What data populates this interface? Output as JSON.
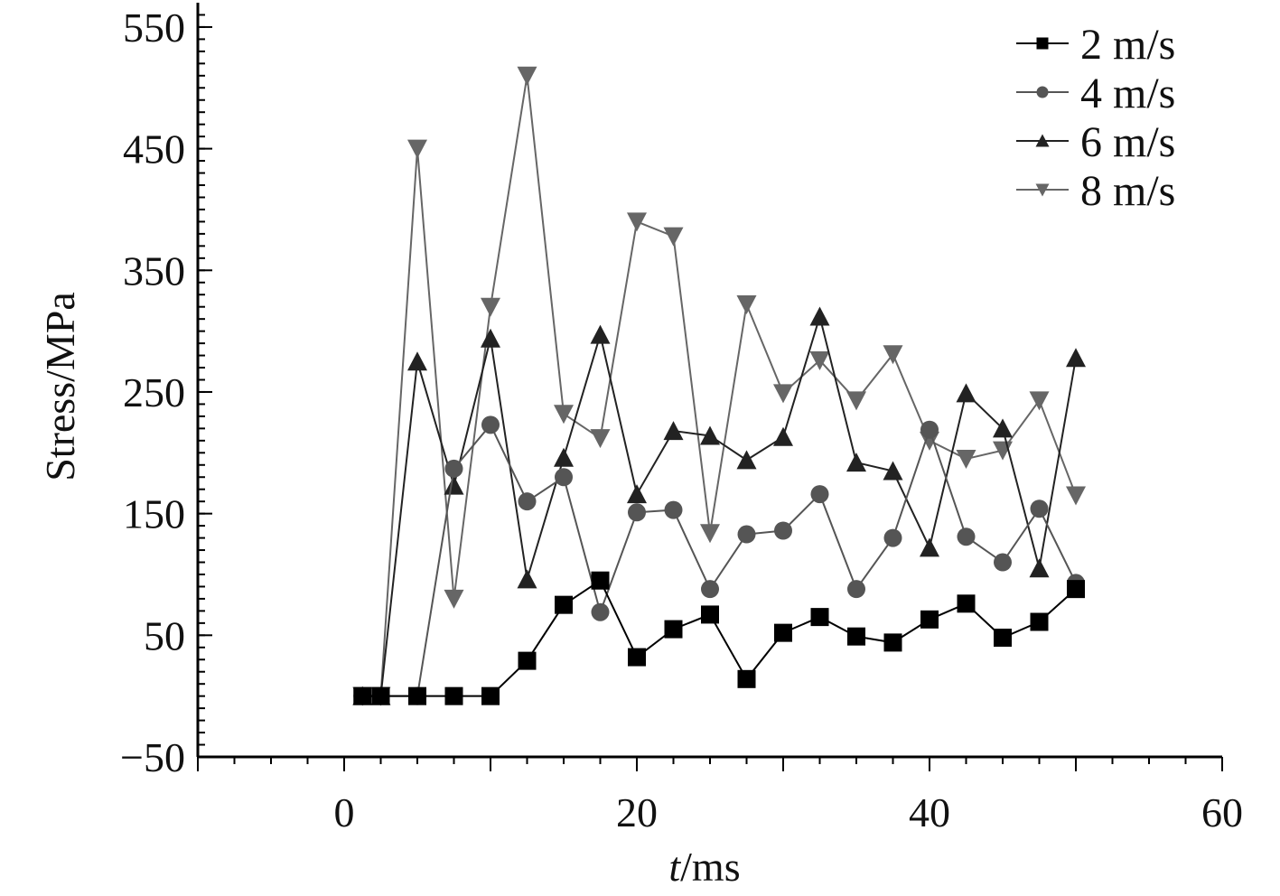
{
  "chart_data": {
    "type": "line",
    "title": "",
    "xlabel_italic": "t",
    "xlabel_rest": "/ms",
    "ylabel": "Stress/MPa",
    "xlim": [
      -10,
      60
    ],
    "ylim": [
      -50,
      570
    ],
    "x_ticks": [
      0,
      20,
      40,
      60
    ],
    "x_ticks_labels": [
      "0",
      "20",
      "40",
      "60"
    ],
    "y_ticks": [
      -50,
      50,
      150,
      250,
      350,
      450,
      550
    ],
    "y_ticks_labels": [
      "−50",
      "50",
      "150",
      "250",
      "350",
      "450",
      "550"
    ],
    "legend_position": "top-right",
    "series": [
      {
        "name": "2 m/s",
        "marker": "square",
        "color": "#000000",
        "x": [
          1.25,
          2.5,
          5,
          7.5,
          10,
          12.5,
          15,
          17.5,
          20,
          22.5,
          25,
          27.5,
          30,
          32.5,
          35,
          37.5,
          40,
          42.5,
          45,
          47.5,
          50
        ],
        "y": [
          0,
          0,
          0,
          0,
          0,
          29,
          75,
          95,
          32,
          55,
          67,
          14,
          52,
          65,
          49,
          44,
          63,
          76,
          48,
          61,
          88
        ]
      },
      {
        "name": "4 m/s",
        "marker": "circle",
        "color": "#555555",
        "x": [
          1.25,
          2.5,
          5,
          7.5,
          10,
          12.5,
          15,
          17.5,
          20,
          22.5,
          25,
          27.5,
          30,
          32.5,
          35,
          37.5,
          40,
          42.5,
          45,
          47.5,
          50
        ],
        "y": [
          0,
          0,
          0,
          187,
          223,
          160,
          180,
          69,
          151,
          153,
          88,
          133,
          136,
          166,
          88,
          130,
          219,
          131,
          110,
          154,
          93
        ]
      },
      {
        "name": "6 m/s",
        "marker": "triangle-up",
        "color": "#222222",
        "x": [
          1.25,
          2.5,
          5,
          7.5,
          10,
          12.5,
          15,
          17.5,
          20,
          22.5,
          25,
          27.5,
          30,
          32.5,
          35,
          37.5,
          40,
          42.5,
          45,
          47.5,
          50
        ],
        "y": [
          0,
          0,
          275,
          173,
          294,
          96,
          196,
          297,
          166,
          218,
          214,
          194,
          213,
          312,
          192,
          185,
          122,
          249,
          220,
          105,
          278
        ]
      },
      {
        "name": "8 m/s",
        "marker": "triangle-down",
        "color": "#666666",
        "x": [
          1.25,
          2.5,
          5,
          7.5,
          10,
          12.5,
          15,
          17.5,
          20,
          22.5,
          25,
          27.5,
          30,
          32.5,
          35,
          37.5,
          40,
          42.5,
          45,
          47.5,
          50
        ],
        "y": [
          0,
          0,
          450,
          80,
          320,
          510,
          232,
          212,
          390,
          378,
          134,
          322,
          249,
          276,
          243,
          281,
          210,
          195,
          202,
          243,
          165
        ]
      }
    ]
  }
}
